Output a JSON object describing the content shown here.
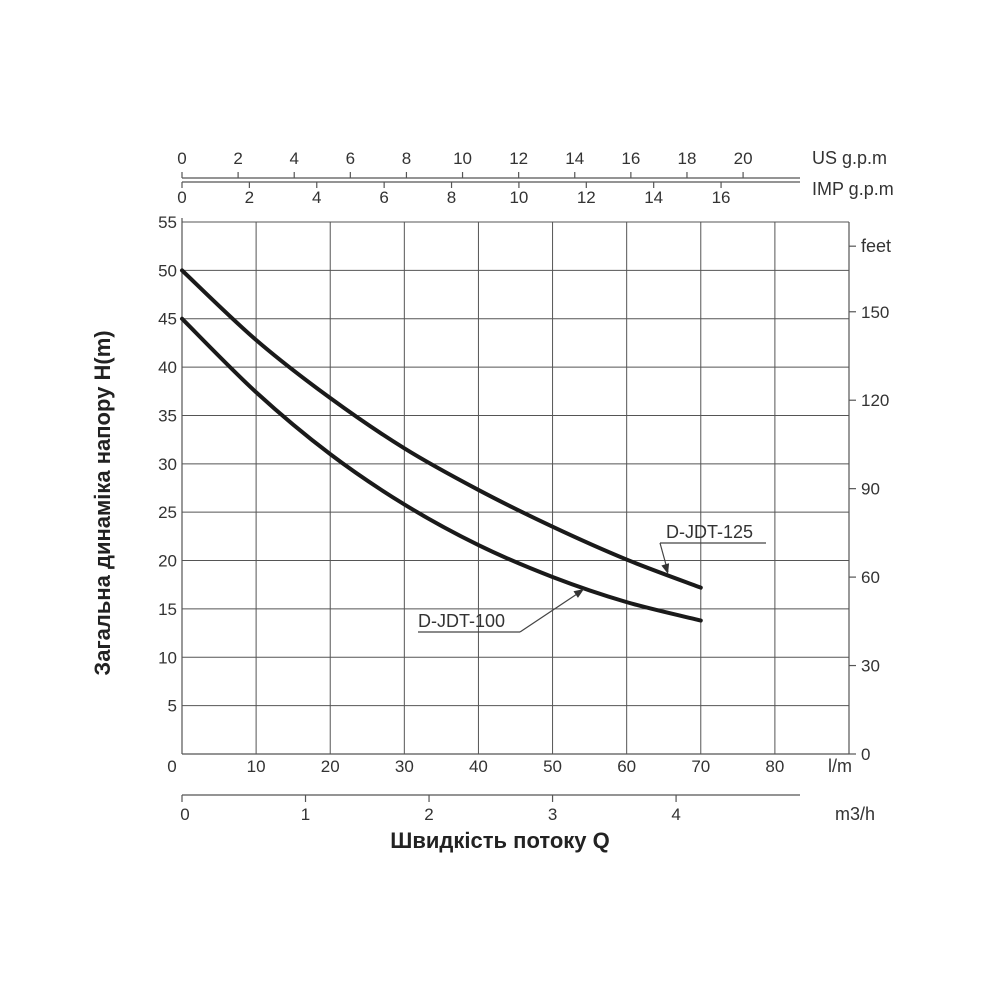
{
  "chart_data": {
    "type": "line",
    "ylabel": "Загальна динаміка напору H(m)",
    "xlabel": "Швидкість потоку Q",
    "x_unit": "l/m",
    "xlim": [
      0,
      90
    ],
    "ylim": [
      0,
      55
    ],
    "x_ticks": [
      0,
      10,
      20,
      30,
      40,
      50,
      60,
      70,
      80
    ],
    "y_ticks": [
      5,
      10,
      15,
      20,
      25,
      30,
      35,
      40,
      45,
      50,
      55
    ],
    "grid": true,
    "secondary_axes": {
      "us_gpm": {
        "label": "US g.p.m",
        "ticks": [
          0,
          2,
          4,
          6,
          8,
          10,
          12,
          14,
          16,
          18,
          20
        ]
      },
      "imp_gpm": {
        "label": "IMP g.p.m",
        "ticks": [
          0,
          2,
          4,
          6,
          8,
          10,
          12,
          14,
          16
        ]
      },
      "m3h": {
        "label": "m3/h",
        "ticks": [
          0,
          1,
          2,
          3,
          4
        ]
      },
      "feet": {
        "label": "feet",
        "ticks": [
          0,
          30,
          60,
          90,
          120,
          150
        ]
      }
    },
    "series": [
      {
        "name": "D-JDT-125",
        "x": [
          0,
          10,
          20,
          30,
          40,
          50,
          60,
          70
        ],
        "y": [
          50,
          42.8,
          36.8,
          31.6,
          27.3,
          23.5,
          20.1,
          17.2
        ]
      },
      {
        "name": "D-JDT-100",
        "x": [
          0,
          10,
          20,
          30,
          40,
          50,
          60,
          70
        ],
        "y": [
          45,
          37.4,
          31,
          25.8,
          21.6,
          18.3,
          15.7,
          13.8
        ]
      }
    ]
  }
}
